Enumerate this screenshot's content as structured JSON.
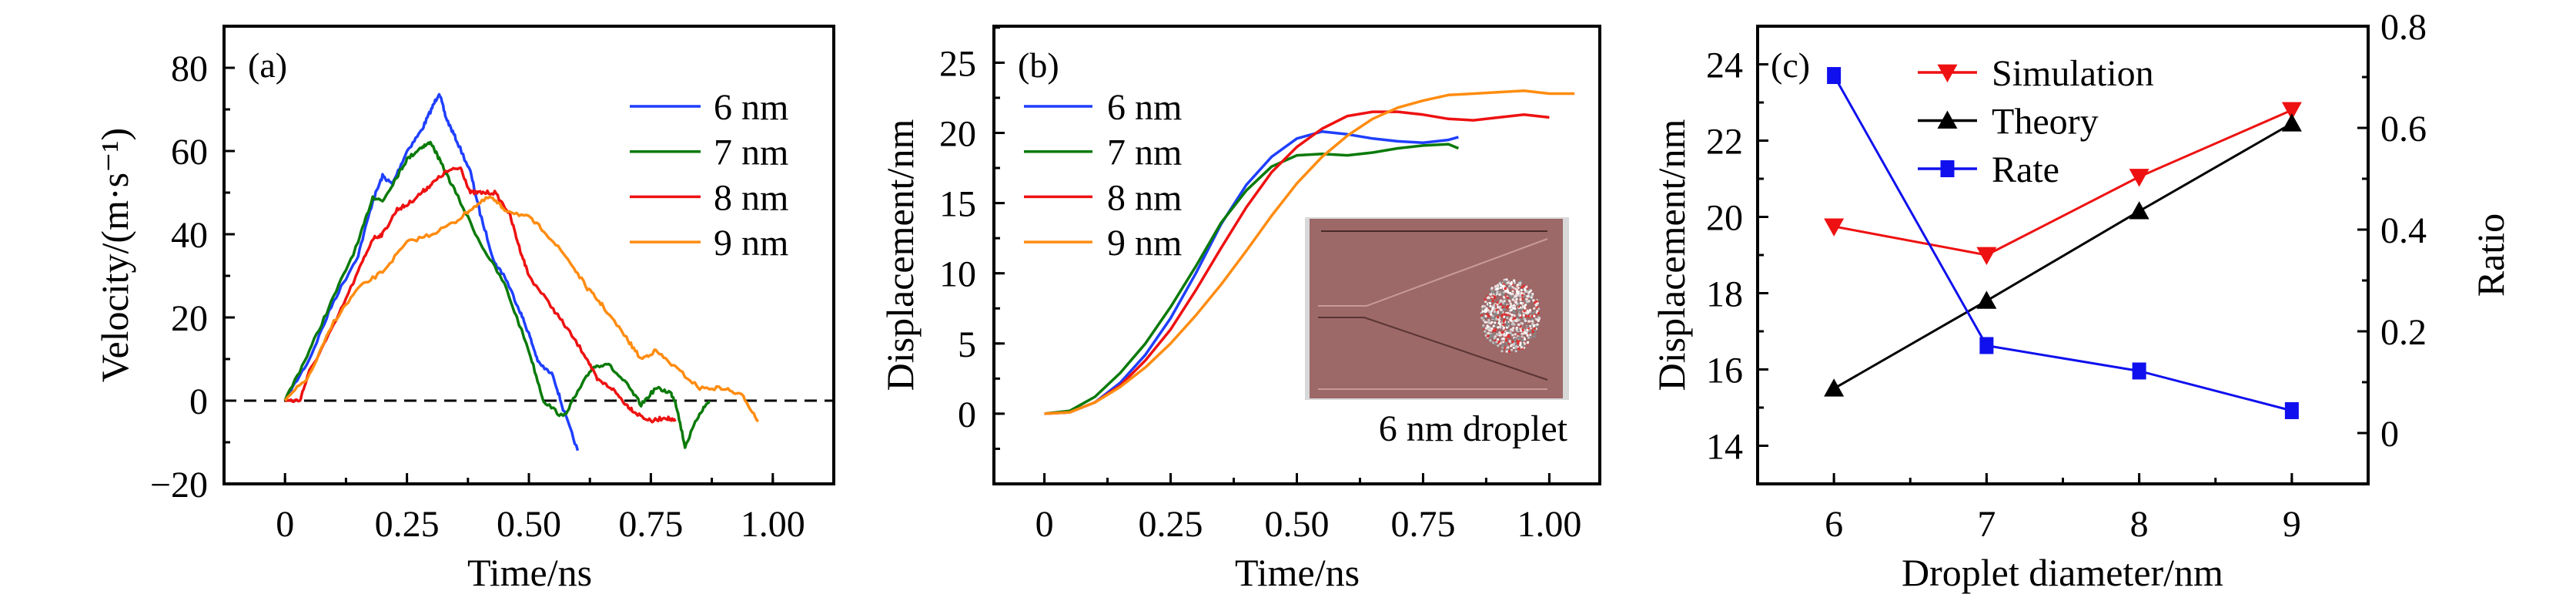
{
  "chart_data": [
    {
      "id": "a",
      "type": "line",
      "panel_label": "(a)",
      "xlabel": "Time/ns",
      "ylabel": "Velocity/(m·s⁻¹)",
      "xlim": [
        -0.125,
        1.125
      ],
      "ylim": [
        -20,
        90
      ],
      "xticks": [
        0,
        0.25,
        0.5,
        0.75,
        1.0
      ],
      "xtick_labels": [
        "0",
        "0.25",
        "0.50",
        "0.75",
        "1.00"
      ],
      "yticks": [
        -20,
        0,
        20,
        40,
        60,
        80
      ],
      "ytick_labels": [
        "−20",
        "0",
        "20",
        "40",
        "60",
        "80"
      ],
      "reference_line": {
        "y": 0,
        "style": "dashed"
      },
      "legend_position": "top-right",
      "series": [
        {
          "name": "6 nm",
          "color": "#1f3fff",
          "x": [
            0,
            0.05,
            0.1,
            0.15,
            0.18,
            0.2,
            0.22,
            0.25,
            0.28,
            0.3,
            0.316,
            0.33,
            0.35,
            0.38,
            0.4,
            0.43,
            0.45,
            0.48,
            0.5,
            0.52,
            0.55,
            0.57,
            0.6
          ],
          "y": [
            0,
            10,
            24,
            35,
            48,
            54,
            52,
            60,
            65,
            70,
            74,
            68,
            63,
            55,
            45,
            33,
            30,
            22,
            16,
            9,
            6,
            -2,
            -12
          ]
        },
        {
          "name": "7 nm",
          "color": "#0a7a0a",
          "x": [
            0,
            0.05,
            0.1,
            0.15,
            0.18,
            0.2,
            0.23,
            0.25,
            0.28,
            0.3,
            0.32,
            0.35,
            0.4,
            0.45,
            0.5,
            0.53,
            0.57,
            0.6,
            0.63,
            0.66,
            0.7,
            0.73,
            0.76,
            0.79,
            0.8,
            0.82,
            0.85,
            0.87
          ],
          "y": [
            0,
            12,
            25,
            38,
            49,
            48,
            54,
            58,
            61,
            62,
            57,
            50,
            38,
            28,
            12,
            0,
            -4,
            2,
            8,
            9,
            4,
            -1,
            3,
            2,
            0,
            -11,
            -3,
            0
          ]
        },
        {
          "name": "8 nm",
          "color": "#ee1111",
          "x": [
            0,
            0.03,
            0.05,
            0.1,
            0.15,
            0.18,
            0.2,
            0.23,
            0.25,
            0.28,
            0.3,
            0.33,
            0.36,
            0.38,
            0.4,
            0.43,
            0.46,
            0.48,
            0.5,
            0.55,
            0.58,
            0.62,
            0.64,
            0.67,
            0.7,
            0.72,
            0.75,
            0.78,
            0.8
          ],
          "y": [
            0,
            0,
            7,
            18,
            31,
            39,
            40,
            46,
            47,
            50,
            52,
            55,
            56,
            50,
            50,
            50,
            45,
            37,
            30,
            22,
            17,
            10,
            5,
            3,
            -1,
            -3,
            -5,
            -4,
            -5
          ]
        },
        {
          "name": "9 nm",
          "color": "#ff8c10",
          "x": [
            0,
            0.05,
            0.1,
            0.15,
            0.2,
            0.25,
            0.3,
            0.35,
            0.38,
            0.42,
            0.45,
            0.5,
            0.53,
            0.58,
            0.62,
            0.65,
            0.7,
            0.73,
            0.76,
            0.8,
            0.85,
            0.9,
            0.94,
            0.97
          ],
          "y": [
            0,
            6,
            19,
            27,
            31,
            38,
            40,
            43,
            46,
            49,
            46,
            44,
            41,
            34,
            27,
            23,
            15,
            10,
            12,
            8,
            3,
            3,
            1,
            -5
          ]
        }
      ]
    },
    {
      "id": "b",
      "type": "line",
      "panel_label": "(b)",
      "xlabel": "Time/ns",
      "ylabel": "Displacement/nm",
      "xlim": [
        -0.1,
        1.1
      ],
      "ylim": [
        -5,
        27.6
      ],
      "xticks": [
        0,
        0.25,
        0.5,
        0.75,
        1.0
      ],
      "xtick_labels": [
        "0",
        "0.25",
        "0.50",
        "0.75",
        "1.00"
      ],
      "yticks": [
        0,
        5,
        10,
        15,
        20,
        25
      ],
      "ytick_labels": [
        "0",
        "5",
        "10",
        "15",
        "20",
        "25"
      ],
      "legend_position": "top-left",
      "inset_caption": "6 nm droplet",
      "series": [
        {
          "name": "6 nm",
          "color": "#1f3fff",
          "x": [
            0,
            0.05,
            0.1,
            0.15,
            0.2,
            0.25,
            0.3,
            0.35,
            0.4,
            0.45,
            0.5,
            0.55,
            0.6,
            0.65,
            0.7,
            0.75,
            0.8,
            0.82
          ],
          "y": [
            0,
            0.1,
            0.8,
            2.2,
            4.2,
            6.8,
            10,
            13.5,
            16.3,
            18.3,
            19.6,
            20.1,
            19.9,
            19.6,
            19.4,
            19.3,
            19.5,
            19.7
          ]
        },
        {
          "name": "7 nm",
          "color": "#0a7a0a",
          "x": [
            0,
            0.05,
            0.1,
            0.15,
            0.2,
            0.25,
            0.3,
            0.35,
            0.4,
            0.45,
            0.5,
            0.55,
            0.6,
            0.65,
            0.7,
            0.75,
            0.8,
            0.82
          ],
          "y": [
            0,
            0.2,
            1.2,
            2.9,
            5.0,
            7.6,
            10.5,
            13.6,
            15.9,
            17.6,
            18.4,
            18.5,
            18.4,
            18.6,
            18.9,
            19.1,
            19.2,
            18.9
          ]
        },
        {
          "name": "8 nm",
          "color": "#ee1111",
          "x": [
            0,
            0.05,
            0.1,
            0.15,
            0.2,
            0.25,
            0.3,
            0.35,
            0.4,
            0.45,
            0.5,
            0.55,
            0.6,
            0.65,
            0.7,
            0.75,
            0.8,
            0.85,
            0.9,
            0.95,
            1.0
          ],
          "y": [
            0,
            0.1,
            0.8,
            2.0,
            3.8,
            6.0,
            8.8,
            11.8,
            14.7,
            17.2,
            19.0,
            20.3,
            21.2,
            21.5,
            21.5,
            21.3,
            21.0,
            20.9,
            21.1,
            21.3,
            21.1
          ]
        },
        {
          "name": "9 nm",
          "color": "#ff8c10",
          "x": [
            0,
            0.05,
            0.1,
            0.15,
            0.2,
            0.25,
            0.3,
            0.35,
            0.4,
            0.45,
            0.5,
            0.55,
            0.6,
            0.65,
            0.7,
            0.75,
            0.8,
            0.85,
            0.9,
            0.95,
            1.0,
            1.05
          ],
          "y": [
            0,
            0.1,
            0.8,
            1.9,
            3.3,
            5.0,
            7.0,
            9.2,
            11.6,
            14.1,
            16.4,
            18.3,
            19.8,
            21.0,
            21.8,
            22.3,
            22.7,
            22.8,
            22.9,
            23.0,
            22.8,
            22.8
          ]
        }
      ]
    },
    {
      "id": "c",
      "type": "line",
      "panel_label": "(c)",
      "xlabel": "Droplet diameter/nm",
      "ylabel": "Displacement/nm",
      "y2label": "Ratio",
      "xlim": [
        5.5,
        9.5
      ],
      "ylim": [
        13,
        25
      ],
      "y2lim": [
        -0.1,
        0.8
      ],
      "xticks": [
        6,
        7,
        8,
        9
      ],
      "xtick_labels": [
        "6",
        "7",
        "8",
        "9"
      ],
      "yticks": [
        14,
        16,
        18,
        20,
        22,
        24
      ],
      "ytick_labels": [
        "14",
        "16",
        "18",
        "20",
        "22",
        "24"
      ],
      "y2ticks": [
        0,
        0.2,
        0.4,
        0.6,
        0.8
      ],
      "y2tick_labels": [
        "0",
        "0.2",
        "0.4",
        "0.6",
        "0.8"
      ],
      "legend_position": "top-center",
      "series": [
        {
          "name": "Simulation",
          "color": "#ee1111",
          "marker": "triangle-down",
          "axis": "left",
          "x": [
            6,
            7,
            8,
            9
          ],
          "y": [
            19.75,
            19.0,
            21.05,
            22.8
          ]
        },
        {
          "name": "Theory",
          "color": "#000000",
          "marker": "triangle-up",
          "axis": "left",
          "x": [
            6,
            7,
            8,
            9
          ],
          "y": [
            15.5,
            17.8,
            20.15,
            22.45
          ]
        },
        {
          "name": "Rate",
          "color": "#1010ee",
          "marker": "square",
          "axis": "right",
          "x": [
            6,
            7,
            8,
            9
          ],
          "y": [
            0.703,
            0.172,
            0.122,
            0.044
          ]
        }
      ]
    }
  ]
}
